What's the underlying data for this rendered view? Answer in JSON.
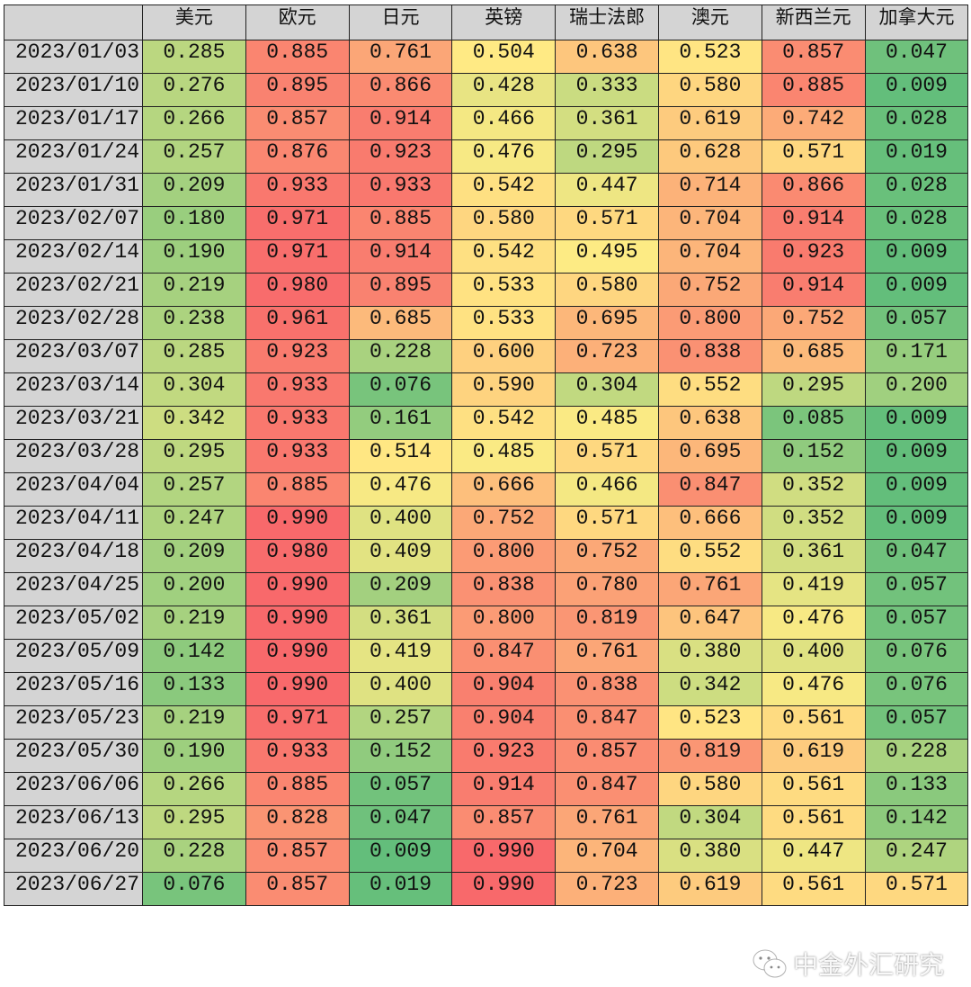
{
  "color_scale": {
    "low": "#63BE7B",
    "mid": "#FFEB84",
    "high": "#F8696B",
    "min": 0.009,
    "midpoint": 0.5,
    "max": 0.99
  },
  "header": [
    "",
    "美元",
    "欧元",
    "日元",
    "英镑",
    "瑞士法郎",
    "澳元",
    "新西兰元",
    "加拿大元"
  ],
  "rows": [
    {
      "date": "2023/01/03",
      "values": [
        "0.285",
        "0.885",
        "0.761",
        "0.504",
        "0.638",
        "0.523",
        "0.857",
        "0.047"
      ]
    },
    {
      "date": "2023/01/10",
      "values": [
        "0.276",
        "0.895",
        "0.866",
        "0.428",
        "0.333",
        "0.580",
        "0.885",
        "0.009"
      ]
    },
    {
      "date": "2023/01/17",
      "values": [
        "0.266",
        "0.857",
        "0.914",
        "0.466",
        "0.361",
        "0.619",
        "0.742",
        "0.028"
      ]
    },
    {
      "date": "2023/01/24",
      "values": [
        "0.257",
        "0.876",
        "0.923",
        "0.476",
        "0.295",
        "0.628",
        "0.571",
        "0.019"
      ]
    },
    {
      "date": "2023/01/31",
      "values": [
        "0.209",
        "0.933",
        "0.933",
        "0.542",
        "0.447",
        "0.714",
        "0.866",
        "0.028"
      ]
    },
    {
      "date": "2023/02/07",
      "values": [
        "0.180",
        "0.971",
        "0.885",
        "0.580",
        "0.571",
        "0.704",
        "0.914",
        "0.028"
      ]
    },
    {
      "date": "2023/02/14",
      "values": [
        "0.190",
        "0.971",
        "0.914",
        "0.542",
        "0.495",
        "0.704",
        "0.923",
        "0.009"
      ]
    },
    {
      "date": "2023/02/21",
      "values": [
        "0.219",
        "0.980",
        "0.895",
        "0.533",
        "0.580",
        "0.752",
        "0.914",
        "0.009"
      ]
    },
    {
      "date": "2023/02/28",
      "values": [
        "0.238",
        "0.961",
        "0.685",
        "0.533",
        "0.695",
        "0.800",
        "0.752",
        "0.057"
      ]
    },
    {
      "date": "2023/03/07",
      "values": [
        "0.285",
        "0.923",
        "0.228",
        "0.600",
        "0.723",
        "0.838",
        "0.685",
        "0.171"
      ]
    },
    {
      "date": "2023/03/14",
      "values": [
        "0.304",
        "0.933",
        "0.076",
        "0.590",
        "0.304",
        "0.552",
        "0.295",
        "0.200"
      ]
    },
    {
      "date": "2023/03/21",
      "values": [
        "0.342",
        "0.933",
        "0.161",
        "0.542",
        "0.485",
        "0.638",
        "0.085",
        "0.009"
      ]
    },
    {
      "date": "2023/03/28",
      "values": [
        "0.295",
        "0.933",
        "0.514",
        "0.485",
        "0.571",
        "0.695",
        "0.152",
        "0.009"
      ]
    },
    {
      "date": "2023/04/04",
      "values": [
        "0.257",
        "0.885",
        "0.476",
        "0.666",
        "0.466",
        "0.847",
        "0.352",
        "0.009"
      ]
    },
    {
      "date": "2023/04/11",
      "values": [
        "0.247",
        "0.990",
        "0.400",
        "0.752",
        "0.571",
        "0.666",
        "0.352",
        "0.009"
      ]
    },
    {
      "date": "2023/04/18",
      "values": [
        "0.209",
        "0.980",
        "0.409",
        "0.800",
        "0.752",
        "0.552",
        "0.361",
        "0.047"
      ]
    },
    {
      "date": "2023/04/25",
      "values": [
        "0.200",
        "0.990",
        "0.209",
        "0.838",
        "0.780",
        "0.761",
        "0.419",
        "0.057"
      ]
    },
    {
      "date": "2023/05/02",
      "values": [
        "0.219",
        "0.990",
        "0.361",
        "0.800",
        "0.819",
        "0.647",
        "0.476",
        "0.057"
      ]
    },
    {
      "date": "2023/05/09",
      "values": [
        "0.142",
        "0.990",
        "0.419",
        "0.847",
        "0.761",
        "0.380",
        "0.400",
        "0.076"
      ]
    },
    {
      "date": "2023/05/16",
      "values": [
        "0.133",
        "0.990",
        "0.400",
        "0.904",
        "0.838",
        "0.342",
        "0.476",
        "0.076"
      ]
    },
    {
      "date": "2023/05/23",
      "values": [
        "0.219",
        "0.971",
        "0.257",
        "0.904",
        "0.847",
        "0.523",
        "0.561",
        "0.057"
      ]
    },
    {
      "date": "2023/05/30",
      "values": [
        "0.190",
        "0.933",
        "0.152",
        "0.923",
        "0.857",
        "0.819",
        "0.619",
        "0.228"
      ]
    },
    {
      "date": "2023/06/06",
      "values": [
        "0.266",
        "0.885",
        "0.057",
        "0.914",
        "0.847",
        "0.580",
        "0.561",
        "0.133"
      ]
    },
    {
      "date": "2023/06/13",
      "values": [
        "0.295",
        "0.828",
        "0.047",
        "0.857",
        "0.761",
        "0.304",
        "0.561",
        "0.142"
      ]
    },
    {
      "date": "2023/06/20",
      "values": [
        "0.228",
        "0.857",
        "0.009",
        "0.990",
        "0.704",
        "0.380",
        "0.447",
        "0.247"
      ]
    },
    {
      "date": "2023/06/27",
      "values": [
        "0.076",
        "0.857",
        "0.019",
        "0.990",
        "0.723",
        "0.619",
        "0.561",
        "0.571"
      ]
    }
  ],
  "watermark": {
    "text": "中金外汇研究",
    "icon": "wechat-icon"
  }
}
